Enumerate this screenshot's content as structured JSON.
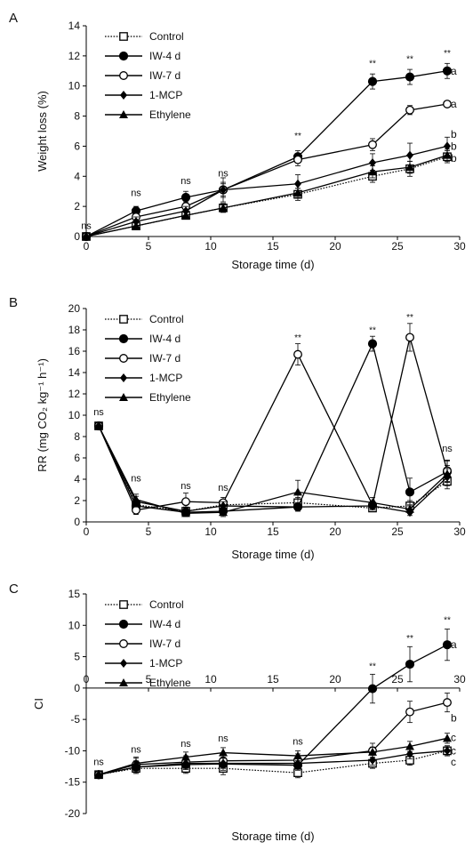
{
  "chart_data": [
    {
      "panel_label": "A",
      "type": "line",
      "xlabel": "Storage time (d)",
      "ylabel": "Weight loss (%)",
      "xlim": [
        0,
        30
      ],
      "ylim": [
        0,
        14
      ],
      "xticks": [
        0,
        5,
        10,
        15,
        20,
        25,
        30
      ],
      "yticks": [
        0,
        2,
        4,
        6,
        8,
        10,
        12,
        14
      ],
      "x": [
        0,
        4,
        8,
        11,
        17,
        23,
        26,
        29
      ],
      "series": [
        {
          "name": "Control",
          "marker": "open-square",
          "dash": "dotted",
          "values": [
            0,
            0.7,
            1.4,
            1.9,
            2.8,
            4.0,
            4.5,
            5.3
          ],
          "err": [
            0,
            0.2,
            0.2,
            0.3,
            0.4,
            0.4,
            0.5,
            0.4
          ]
        },
        {
          "name": "IW-4 d",
          "marker": "filled-circle",
          "dash": "solid",
          "values": [
            0,
            1.7,
            2.6,
            3.1,
            5.3,
            10.3,
            10.6,
            11.0
          ],
          "err": [
            0,
            0.3,
            0.4,
            0.4,
            0.4,
            0.5,
            0.5,
            0.5
          ]
        },
        {
          "name": "IW-7 d",
          "marker": "open-circle",
          "dash": "solid",
          "values": [
            0,
            1.3,
            2.0,
            3.1,
            5.1,
            6.1,
            8.4,
            8.8
          ],
          "err": [
            0,
            0.3,
            0.3,
            0.8,
            0.4,
            0.4,
            0.3,
            0.2
          ]
        },
        {
          "name": "1-MCP",
          "marker": "filled-diamond",
          "dash": "solid",
          "values": [
            0,
            1.0,
            1.7,
            3.1,
            3.5,
            4.9,
            5.4,
            6.0
          ],
          "err": [
            0,
            0.3,
            0.3,
            0.5,
            0.6,
            0.6,
            0.8,
            0.6
          ]
        },
        {
          "name": "Ethylene",
          "marker": "filled-triangle",
          "dash": "solid",
          "values": [
            0,
            0.7,
            1.4,
            1.9,
            2.9,
            4.3,
            4.6,
            5.4
          ],
          "err": [
            0,
            0.2,
            0.2,
            0.2,
            0.3,
            0.4,
            0.4,
            0.4
          ]
        }
      ],
      "significance": [
        {
          "x": 0,
          "y": 0.5,
          "text": "ns"
        },
        {
          "x": 4,
          "y": 2.7,
          "text": "ns"
        },
        {
          "x": 8,
          "y": 3.5,
          "text": "ns"
        },
        {
          "x": 11,
          "y": 4.0,
          "text": "ns"
        },
        {
          "x": 17,
          "y": 6.5,
          "text": "**"
        },
        {
          "x": 23,
          "y": 11.3,
          "text": "**"
        },
        {
          "x": 26,
          "y": 11.6,
          "text": "**"
        },
        {
          "x": 29,
          "y": 12.0,
          "text": "**"
        }
      ],
      "group_letters": [
        {
          "y": 11.0,
          "text": "a"
        },
        {
          "y": 8.8,
          "text": "a"
        },
        {
          "y": 6.8,
          "text": "b"
        },
        {
          "y": 6.0,
          "text": "b"
        },
        {
          "y": 5.2,
          "text": "b"
        }
      ]
    },
    {
      "panel_label": "B",
      "type": "line",
      "xlabel": "Storage time (d)",
      "ylabel": "RR (mg CO₂ kg⁻¹ h⁻¹)",
      "xlim": [
        0,
        30
      ],
      "ylim": [
        0,
        20
      ],
      "xticks": [
        0,
        5,
        10,
        15,
        20,
        25,
        30
      ],
      "yticks": [
        0,
        2,
        4,
        6,
        8,
        10,
        12,
        14,
        16,
        18,
        20
      ],
      "x": [
        1,
        4,
        8,
        11,
        17,
        23,
        26,
        29
      ],
      "series": [
        {
          "name": "Control",
          "marker": "open-square",
          "dash": "dotted",
          "values": [
            9.0,
            1.6,
            1.0,
            1.6,
            1.8,
            1.3,
            1.5,
            3.8
          ],
          "err": [
            0,
            0.5,
            0.4,
            0.5,
            0.5,
            0.3,
            0.5,
            0.7
          ]
        },
        {
          "name": "IW-4 d",
          "marker": "filled-circle",
          "dash": "solid",
          "values": [
            9.0,
            1.5,
            0.9,
            1.0,
            1.4,
            16.7,
            2.8,
            4.7
          ],
          "err": [
            0,
            0.4,
            0.3,
            0.3,
            0.3,
            0.7,
            1.3,
            1.0
          ]
        },
        {
          "name": "IW-7 d",
          "marker": "open-circle",
          "dash": "solid",
          "values": [
            9.0,
            1.1,
            1.9,
            1.8,
            15.7,
            1.6,
            17.3,
            4.8
          ],
          "err": [
            0,
            0.4,
            0.8,
            0.5,
            1.0,
            0.4,
            1.3,
            1.0
          ]
        },
        {
          "name": "1-MCP",
          "marker": "filled-diamond",
          "dash": "solid",
          "values": [
            9.0,
            1.9,
            1.0,
            1.5,
            1.4,
            1.5,
            0.9,
            4.2
          ],
          "err": [
            0,
            0.5,
            0.3,
            0.4,
            0.4,
            0.4,
            0.3,
            0.8
          ]
        },
        {
          "name": "Ethylene",
          "marker": "filled-triangle",
          "dash": "solid",
          "values": [
            9.0,
            2.1,
            0.8,
            0.9,
            2.8,
            1.8,
            1.2,
            4.5
          ],
          "err": [
            0,
            0.5,
            0.3,
            0.4,
            1.1,
            0.5,
            0.4,
            0.8
          ]
        }
      ],
      "significance": [
        {
          "x": 1,
          "y": 10.0,
          "text": "ns"
        },
        {
          "x": 4,
          "y": 3.8,
          "text": "ns"
        },
        {
          "x": 8,
          "y": 3.1,
          "text": "ns"
        },
        {
          "x": 11,
          "y": 2.9,
          "text": "ns"
        },
        {
          "x": 17,
          "y": 17.0,
          "text": "**"
        },
        {
          "x": 23,
          "y": 17.7,
          "text": "**"
        },
        {
          "x": 26,
          "y": 18.9,
          "text": "**"
        },
        {
          "x": 29,
          "y": 6.6,
          "text": "ns"
        }
      ]
    },
    {
      "panel_label": "C",
      "type": "line",
      "xlabel": "Storage time (d)",
      "ylabel": "CI",
      "xlim": [
        0,
        30
      ],
      "ylim": [
        -20,
        15
      ],
      "xticks": [
        0,
        5,
        10,
        15,
        20,
        25,
        30
      ],
      "yticks": [
        -20,
        -15,
        -10,
        -5,
        0,
        5,
        10,
        15
      ],
      "x": [
        1,
        4,
        8,
        11,
        17,
        23,
        26,
        29
      ],
      "series": [
        {
          "name": "Control",
          "marker": "open-square",
          "dash": "dotted",
          "values": [
            -13.8,
            -12.8,
            -12.8,
            -12.8,
            -13.5,
            -12.0,
            -11.5,
            -10.0
          ],
          "err": [
            0,
            0.8,
            0.8,
            1.0,
            0.8,
            0.8,
            0.8,
            0.8
          ]
        },
        {
          "name": "IW-4 d",
          "marker": "filled-circle",
          "dash": "solid",
          "values": [
            -13.8,
            -12.6,
            -12.2,
            -12.1,
            -12.3,
            -0.1,
            3.8,
            6.9
          ],
          "err": [
            0,
            1.0,
            0.8,
            1.0,
            0.8,
            2.3,
            2.8,
            2.5
          ]
        },
        {
          "name": "IW-7 d",
          "marker": "open-circle",
          "dash": "solid",
          "values": [
            -13.8,
            -12.2,
            -11.8,
            -11.6,
            -11.5,
            -10.0,
            -3.8,
            -2.3
          ],
          "err": [
            0,
            1.0,
            1.0,
            1.0,
            1.0,
            1.2,
            1.7,
            1.5
          ]
        },
        {
          "name": "1-MCP",
          "marker": "filled-diamond",
          "dash": "solid",
          "values": [
            -13.8,
            -12.6,
            -12.0,
            -12.0,
            -12.0,
            -11.5,
            -10.5,
            -10.0
          ],
          "err": [
            0,
            0.8,
            0.8,
            0.8,
            0.8,
            0.8,
            0.8,
            0.8
          ]
        },
        {
          "name": "Ethylene",
          "marker": "filled-triangle",
          "dash": "solid",
          "values": [
            -13.8,
            -12.0,
            -11.0,
            -10.3,
            -10.8,
            -10.2,
            -9.3,
            -8.0
          ],
          "err": [
            0,
            1.0,
            0.8,
            0.8,
            0.8,
            0.8,
            0.8,
            0.8
          ]
        }
      ],
      "significance": [
        {
          "x": 1,
          "y": -12.3,
          "text": "ns"
        },
        {
          "x": 4,
          "y": -10.3,
          "text": "ns"
        },
        {
          "x": 8,
          "y": -9.4,
          "text": "ns"
        },
        {
          "x": 11,
          "y": -8.5,
          "text": "ns"
        },
        {
          "x": 17,
          "y": -9.0,
          "text": "ns"
        },
        {
          "x": 23,
          "y": 3.0,
          "text": "**"
        },
        {
          "x": 26,
          "y": 7.5,
          "text": "**"
        },
        {
          "x": 29,
          "y": 10.4,
          "text": "**"
        }
      ],
      "group_letters": [
        {
          "y": 6.9,
          "text": "a"
        },
        {
          "y": -4.8,
          "text": "b"
        },
        {
          "y": -7.9,
          "text": "c"
        },
        {
          "y": -10.0,
          "text": "c"
        },
        {
          "y": -11.8,
          "text": "c"
        }
      ]
    }
  ]
}
